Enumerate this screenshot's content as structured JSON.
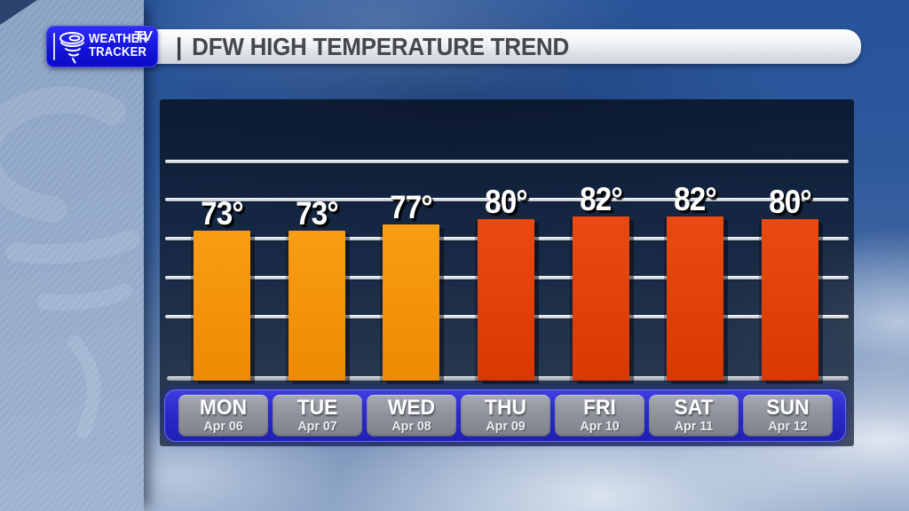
{
  "logo": {
    "line1": "WEATHER",
    "line2": "TRACKER",
    "badge": "TV"
  },
  "header": {
    "pipe": "|",
    "title": "DFW HIGH TEMPERATURE TREND"
  },
  "chart_data": {
    "type": "bar",
    "title": "DFW HIGH TEMPERATURE TREND",
    "categories": [
      "MON",
      "TUE",
      "WED",
      "THU",
      "FRI",
      "SAT",
      "SUN"
    ],
    "dates": [
      "Apr 06",
      "Apr 07",
      "Apr 08",
      "Apr 09",
      "Apr 10",
      "Apr 11",
      "Apr 12"
    ],
    "values": [
      73,
      73,
      77,
      80,
      82,
      82,
      80
    ],
    "value_suffix": "°",
    "bar_palette": [
      "orange",
      "orange",
      "orange",
      "red",
      "red",
      "red",
      "red"
    ],
    "palette": {
      "orange": [
        "#f89e14",
        "#ee8903"
      ],
      "red": [
        "#ea4a12",
        "#d93803"
      ]
    },
    "grid": true,
    "gridline_count": 5,
    "legend": false,
    "xlabel": "",
    "ylabel": ""
  },
  "colors": {
    "logo_blue": "#1414dc",
    "strip_blue": "#2a2ac9",
    "day_box_gray": "#8e939c",
    "header_text": "#45474b",
    "gridline_silver": "#c6cbd2"
  }
}
